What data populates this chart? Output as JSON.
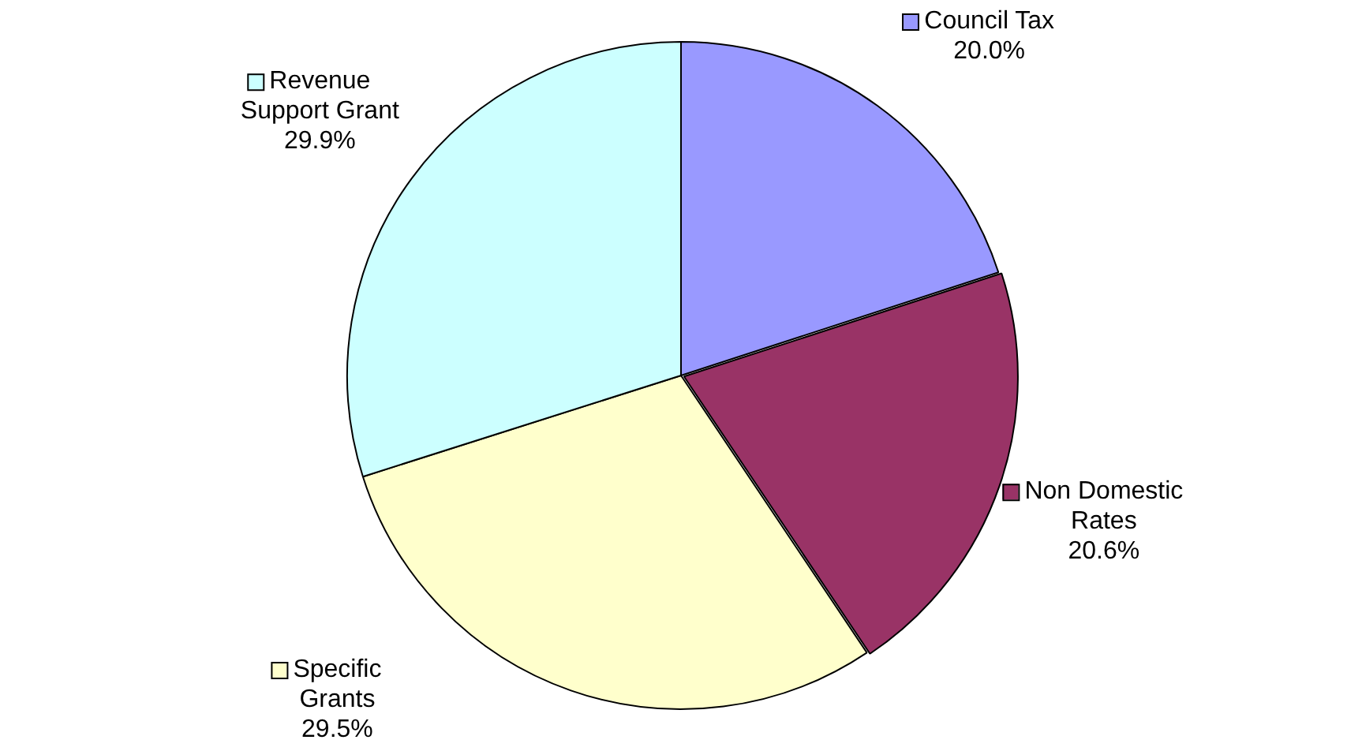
{
  "chart_data": {
    "type": "pie",
    "categories": [
      "Council Tax",
      "Non Domestic Rates",
      "Specific Grants",
      "Revenue Support Grant"
    ],
    "values": [
      20.0,
      20.6,
      29.5,
      29.9
    ],
    "value_labels": [
      "20.0%",
      "20.6%",
      "29.5%",
      "29.9%"
    ],
    "colors": [
      "#9999ff",
      "#993366",
      "#ffffcc",
      "#ccffff"
    ],
    "legend": "right"
  }
}
